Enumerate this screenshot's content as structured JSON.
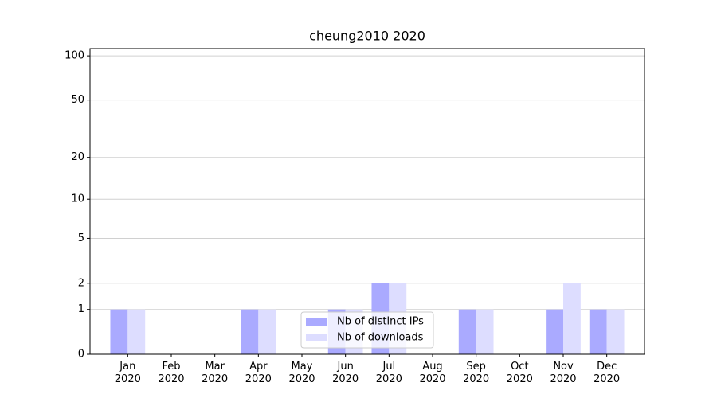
{
  "chart_data": {
    "type": "bar",
    "title": "cheung2010 2020",
    "categories": [
      "Jan\n2020",
      "Feb\n2020",
      "Mar\n2020",
      "Apr\n2020",
      "May\n2020",
      "Jun\n2020",
      "Jul\n2020",
      "Aug\n2020",
      "Sep\n2020",
      "Oct\n2020",
      "Nov\n2020",
      "Dec\n2020"
    ],
    "series": [
      {
        "name": "Nb of distinct IPs",
        "color": "#aaaaff",
        "values": [
          1,
          0,
          0,
          1,
          0,
          1,
          2,
          0,
          1,
          0,
          1,
          1
        ]
      },
      {
        "name": "Nb of downloads",
        "color": "#ddddff",
        "values": [
          1,
          0,
          0,
          1,
          0,
          1,
          2,
          0,
          1,
          0,
          2,
          1
        ]
      }
    ],
    "yscale": "log1p",
    "ylim": [
      0,
      112
    ],
    "yticks": [
      0,
      1,
      2,
      5,
      10,
      20,
      50,
      100
    ],
    "grid": true,
    "legend": "lower center"
  }
}
